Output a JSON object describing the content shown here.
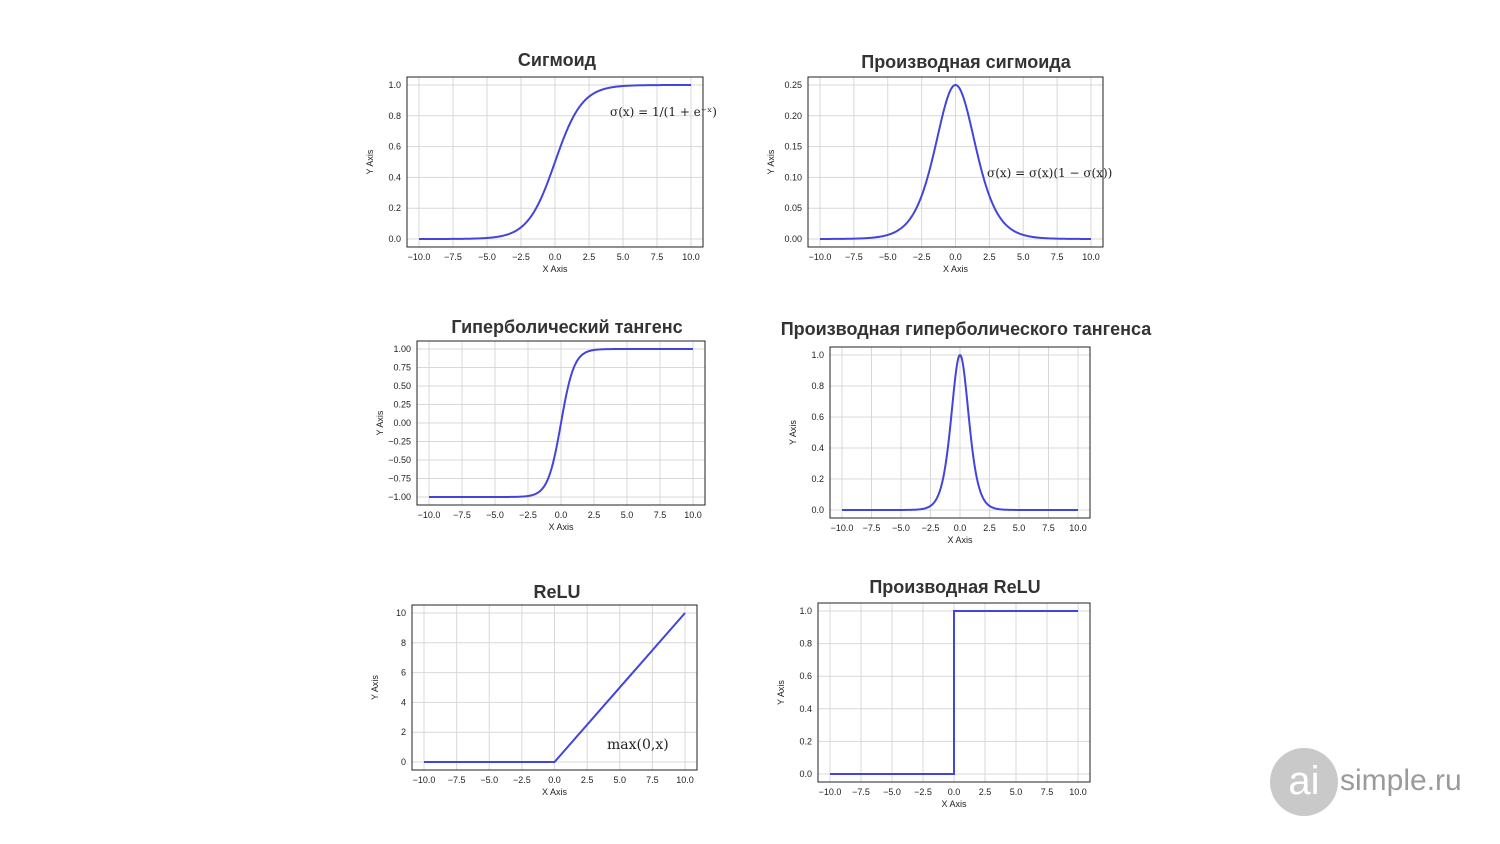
{
  "colors": {
    "line": "#4444dd",
    "grid": "#d8d8d8",
    "axis": "#222222",
    "title": "#333333"
  },
  "chart_data": [
    {
      "type": "line",
      "title": "Сигмоид",
      "function": "sigmoid",
      "xlabel": "X Axis",
      "ylabel": "Y Axis",
      "xlim": [
        -10,
        10
      ],
      "ylim": [
        0,
        1
      ],
      "xticks": [
        -10,
        -7.5,
        -5,
        -2.5,
        0,
        2.5,
        5,
        7.5,
        10
      ],
      "xtick_labels": [
        "−10.0",
        "−7.5",
        "−5.0",
        "−2.5",
        "0.0",
        "2.5",
        "5.0",
        "7.5",
        "10.0"
      ],
      "yticks": [
        0,
        0.2,
        0.4,
        0.6,
        0.8,
        1.0
      ],
      "ytick_labels": [
        "0.0",
        "0.2",
        "0.4",
        "0.6",
        "0.8",
        "1.0"
      ],
      "grid": true,
      "annotation": "σ(x) = 1/(1 + e⁻ˣ)",
      "x": [
        -10,
        -8,
        -6,
        -4,
        -3,
        -2,
        -1,
        0,
        1,
        2,
        3,
        4,
        6,
        8,
        10
      ],
      "y": [
        5e-05,
        0.0003,
        0.0025,
        0.018,
        0.047,
        0.119,
        0.269,
        0.5,
        0.731,
        0.881,
        0.953,
        0.982,
        0.9975,
        0.9997,
        0.99995
      ]
    },
    {
      "type": "line",
      "title": "Производная сигмоида",
      "function": "sigmoid_derivative",
      "xlabel": "X Axis",
      "ylabel": "Y Axis",
      "xlim": [
        -10,
        10
      ],
      "ylim": [
        0,
        0.25
      ],
      "xticks": [
        -10,
        -7.5,
        -5,
        -2.5,
        0,
        2.5,
        5,
        7.5,
        10
      ],
      "xtick_labels": [
        "−10.0",
        "−7.5",
        "−5.0",
        "−2.5",
        "0.0",
        "2.5",
        "5.0",
        "7.5",
        "10.0"
      ],
      "yticks": [
        0,
        0.05,
        0.1,
        0.15,
        0.2,
        0.25
      ],
      "ytick_labels": [
        "0.00",
        "0.05",
        "0.10",
        "0.15",
        "0.20",
        "0.25"
      ],
      "grid": true,
      "annotation": "σ(x) = σ(x)(1 − σ(x))",
      "x": [
        -10,
        -8,
        -6,
        -4,
        -3,
        -2,
        -1,
        0,
        1,
        2,
        3,
        4,
        6,
        8,
        10
      ],
      "y": [
        5e-05,
        0.0003,
        0.0025,
        0.0177,
        0.0452,
        0.105,
        0.197,
        0.25,
        0.197,
        0.105,
        0.0452,
        0.0177,
        0.0025,
        0.0003,
        5e-05
      ]
    },
    {
      "type": "line",
      "title": "Гиперболический тангенс",
      "function": "tanh",
      "xlabel": "X Axis",
      "ylabel": "Y Axis",
      "xlim": [
        -10,
        10
      ],
      "ylim": [
        -1,
        1
      ],
      "xticks": [
        -10,
        -7.5,
        -5,
        -2.5,
        0,
        2.5,
        5,
        7.5,
        10
      ],
      "xtick_labels": [
        "−10.0",
        "−7.5",
        "−5.0",
        "−2.5",
        "0.0",
        "2.5",
        "5.0",
        "7.5",
        "10.0"
      ],
      "yticks": [
        -1,
        -0.75,
        -0.5,
        -0.25,
        0,
        0.25,
        0.5,
        0.75,
        1
      ],
      "ytick_labels": [
        "−1.00",
        "−0.75",
        "−0.50",
        "−0.25",
        "0.00",
        "0.25",
        "0.50",
        "0.75",
        "1.00"
      ],
      "grid": true,
      "x": [
        -10,
        -4,
        -3,
        -2,
        -1.5,
        -1,
        -0.5,
        0,
        0.5,
        1,
        1.5,
        2,
        3,
        4,
        10
      ],
      "y": [
        -1,
        -0.9993,
        -0.995,
        -0.964,
        -0.905,
        -0.762,
        -0.462,
        0,
        0.462,
        0.762,
        0.905,
        0.964,
        0.995,
        0.9993,
        1
      ]
    },
    {
      "type": "line",
      "title": "Производная гиперболического тангенса",
      "function": "tanh_derivative",
      "xlabel": "X Axis",
      "ylabel": "Y Axis",
      "xlim": [
        -10,
        10
      ],
      "ylim": [
        0,
        1
      ],
      "xticks": [
        -10,
        -7.5,
        -5,
        -2.5,
        0,
        2.5,
        5,
        7.5,
        10
      ],
      "xtick_labels": [
        "−10.0",
        "−7.5",
        "−5.0",
        "−2.5",
        "0.0",
        "2.5",
        "5.0",
        "7.5",
        "10.0"
      ],
      "yticks": [
        0,
        0.2,
        0.4,
        0.6,
        0.8,
        1.0
      ],
      "ytick_labels": [
        "0.0",
        "0.2",
        "0.4",
        "0.6",
        "0.8",
        "1.0"
      ],
      "grid": true,
      "x": [
        -10,
        -4,
        -3,
        -2,
        -1.5,
        -1,
        -0.5,
        0,
        0.5,
        1,
        1.5,
        2,
        3,
        4,
        10
      ],
      "y": [
        0,
        0.0013,
        0.0099,
        0.0707,
        0.181,
        0.42,
        0.786,
        1,
        0.786,
        0.42,
        0.181,
        0.0707,
        0.0099,
        0.0013,
        0
      ]
    },
    {
      "type": "line",
      "title": "ReLU",
      "function": "relu",
      "xlabel": "X Axis",
      "ylabel": "Y Axis",
      "xlim": [
        -10,
        10
      ],
      "ylim": [
        0,
        10
      ],
      "xticks": [
        -10,
        -7.5,
        -5,
        -2.5,
        0,
        2.5,
        5,
        7.5,
        10
      ],
      "xtick_labels": [
        "−10.0",
        "−7.5",
        "−5.0",
        "−2.5",
        "0.0",
        "2.5",
        "5.0",
        "7.5",
        "10.0"
      ],
      "yticks": [
        0,
        2,
        4,
        6,
        8,
        10
      ],
      "ytick_labels": [
        "0",
        "2",
        "4",
        "6",
        "8",
        "10"
      ],
      "grid": true,
      "annotation": "max(0,x)",
      "x": [
        -10,
        0,
        10
      ],
      "y": [
        0,
        0,
        10
      ]
    },
    {
      "type": "line",
      "title": "Производная ReLU",
      "function": "relu_derivative",
      "xlabel": "X Axis",
      "ylabel": "Y Axis",
      "xlim": [
        -10,
        10
      ],
      "ylim": [
        0,
        1
      ],
      "xticks": [
        -10,
        -7.5,
        -5,
        -2.5,
        0,
        2.5,
        5,
        7.5,
        10
      ],
      "xtick_labels": [
        "−10.0",
        "−7.5",
        "−5.0",
        "−2.5",
        "0.0",
        "2.5",
        "5.0",
        "7.5",
        "10.0"
      ],
      "yticks": [
        0,
        0.2,
        0.4,
        0.6,
        0.8,
        1.0
      ],
      "ytick_labels": [
        "0.0",
        "0.2",
        "0.4",
        "0.6",
        "0.8",
        "1.0"
      ],
      "grid": true,
      "x": [
        -10,
        0,
        0,
        10
      ],
      "y": [
        0,
        0,
        1,
        1
      ]
    }
  ],
  "logo": {
    "mark": "ai",
    "text": "simple.ru"
  }
}
